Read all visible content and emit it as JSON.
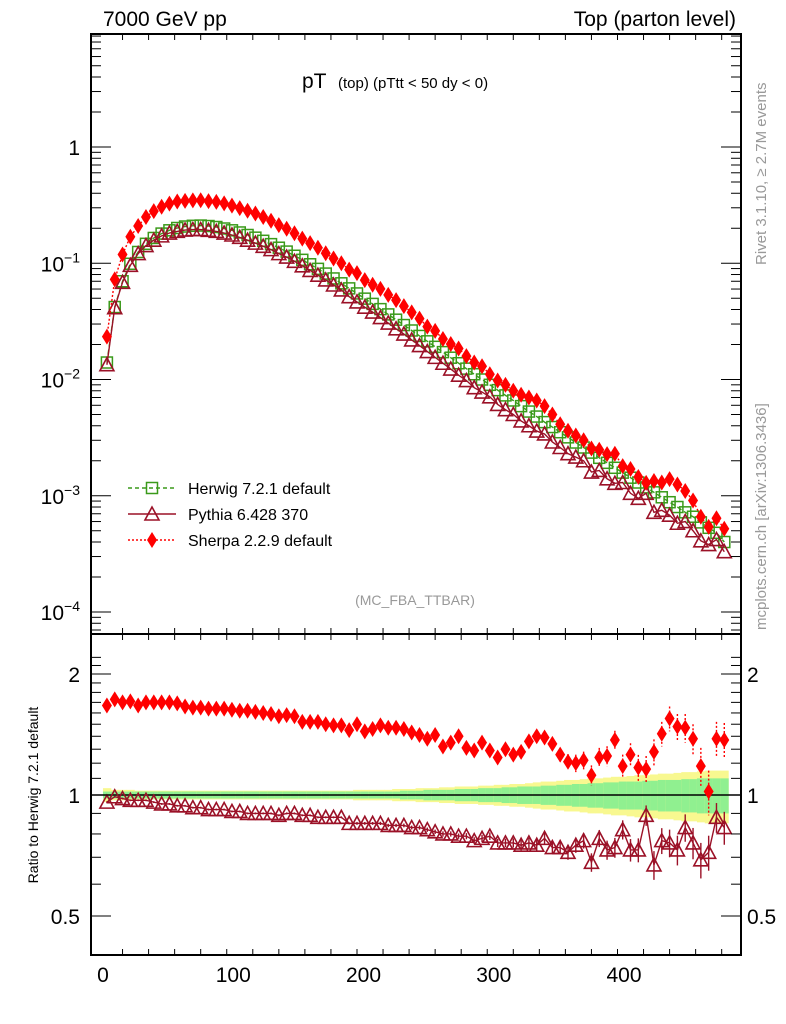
{
  "header": {
    "left": "7000 GeV pp",
    "right": "Top (parton level)"
  },
  "side_labels": {
    "rivet": "Rivet 3.1.10, ≥ 2.7M events",
    "mcplots": "mcplots.cern.ch [arXiv:1306.3436]"
  },
  "chart_data": [
    {
      "type": "scatter",
      "panel": "main",
      "title_main": "pT",
      "title_sub": "(top) (pTtt < 50 dy < 0)",
      "watermark": "(MC_FBA_TTBAR)",
      "yscale": "log",
      "ylim": [
        7e-05,
        10
      ],
      "xlim": [
        -9,
        491
      ],
      "ytick_labels": [
        "1",
        "10^-1",
        "10^-2",
        "10^-3",
        "10^-4"
      ],
      "ytick_values": [
        1,
        0.1,
        0.01,
        0.001,
        0.0001
      ],
      "legend_position": "lower-left",
      "x": [
        3,
        9,
        15,
        21,
        27,
        33,
        39,
        45,
        51,
        57,
        63,
        69,
        75,
        81,
        87,
        93,
        99,
        105,
        111,
        117,
        123,
        129,
        135,
        141,
        147,
        153,
        159,
        165,
        171,
        177,
        183,
        189,
        195,
        201,
        207,
        213,
        219,
        225,
        231,
        237,
        243,
        249,
        255,
        261,
        267,
        273,
        279,
        285,
        291,
        297,
        303,
        309,
        315,
        321,
        327,
        333,
        339,
        345,
        351,
        357,
        363,
        369,
        375,
        381,
        387,
        393,
        399,
        405,
        411,
        417,
        423,
        429,
        435,
        441,
        447,
        453,
        459,
        465,
        471,
        477
      ],
      "series": [
        {
          "name": "Herwig 7.2.1 default",
          "color": "#3a9a1a",
          "marker": "open-square",
          "line": "dashed",
          "values": [
            0.014,
            0.042,
            0.07,
            0.099,
            0.125,
            0.147,
            0.165,
            0.18,
            0.192,
            0.201,
            0.207,
            0.21,
            0.211,
            0.209,
            0.205,
            0.199,
            0.192,
            0.184,
            0.175,
            0.166,
            0.156,
            0.146,
            0.136,
            0.126,
            0.116,
            0.107,
            0.098,
            0.0895,
            0.0815,
            0.074,
            0.0672,
            0.0608,
            0.055,
            0.0496,
            0.0447,
            0.0403,
            0.0363,
            0.0327,
            0.0294,
            0.0264,
            0.0237,
            0.0213,
            0.0191,
            0.0172,
            0.0154,
            0.0138,
            0.0124,
            0.0111,
            0.01,
            0.009,
            0.0081,
            0.0073,
            0.0066,
            0.0059,
            0.0053,
            0.0048,
            0.0043,
            0.0039,
            0.00352,
            0.00318,
            0.00287,
            0.0026,
            0.00235,
            0.00212,
            0.00192,
            0.00174,
            0.00158,
            0.00143,
            0.0013,
            0.00118,
            0.00107,
            0.00097,
            0.00088,
            0.0008,
            0.00072,
            0.00066,
            0.00059,
            0.00053,
            0.00048,
            0.0004
          ]
        },
        {
          "name": "Pythia 6.428 370",
          "color": "#9b1127",
          "marker": "open-triangle",
          "line": "solid",
          "values": [
            0.0134,
            0.0415,
            0.0685,
            0.096,
            0.121,
            0.142,
            0.158,
            0.172,
            0.182,
            0.188,
            0.193,
            0.195,
            0.195,
            0.192,
            0.188,
            0.182,
            0.175,
            0.167,
            0.158,
            0.149,
            0.14,
            0.131,
            0.121,
            0.113,
            0.104,
            0.095,
            0.0868,
            0.079,
            0.0718,
            0.065,
            0.0589,
            0.0516,
            0.0465,
            0.0419,
            0.038,
            0.0341,
            0.0306,
            0.0273,
            0.0246,
            0.0219,
            0.0196,
            0.0174,
            0.0155,
            0.0138,
            0.0123,
            0.0109,
            0.0098,
            0.0085,
            0.0078,
            0.0071,
            0.0061,
            0.0055,
            0.005,
            0.0044,
            0.004,
            0.0036,
            0.0034,
            0.0029,
            0.0026,
            0.0023,
            0.00215,
            0.002,
            0.0016,
            0.00165,
            0.0014,
            0.00128,
            0.0013,
            0.00105,
            0.00095,
            0.00105,
            0.00072,
            0.00075,
            0.00068,
            0.00058,
            0.0006,
            0.0005,
            0.00041,
            0.00038,
            0.00042,
            0.00033
          ]
        },
        {
          "name": "Sherpa 2.2.9 default",
          "color": "#ff0000",
          "marker": "filled-diamond",
          "line": "dotted",
          "values": [
            0.0234,
            0.0726,
            0.119,
            0.169,
            0.209,
            0.25,
            0.281,
            0.306,
            0.326,
            0.34,
            0.344,
            0.347,
            0.348,
            0.342,
            0.337,
            0.327,
            0.313,
            0.298,
            0.283,
            0.268,
            0.25,
            0.232,
            0.213,
            0.198,
            0.181,
            0.163,
            0.149,
            0.136,
            0.122,
            0.11,
            0.0999,
            0.0882,
            0.0823,
            0.0715,
            0.0653,
            0.0602,
            0.0534,
            0.0482,
            0.0428,
            0.0378,
            0.0334,
            0.0285,
            0.0262,
            0.0223,
            0.0202,
            0.0185,
            0.0159,
            0.014,
            0.013,
            0.0111,
            0.0098,
            0.009,
            0.008,
            0.0074,
            0.007,
            0.0066,
            0.0059,
            0.005,
            0.00412,
            0.00362,
            0.0033,
            0.003,
            0.00255,
            0.00249,
            0.00228,
            0.0023,
            0.0018,
            0.0017,
            0.00145,
            0.00129,
            0.00134,
            0.0013,
            0.00139,
            0.00125,
            0.0011,
            0.00091,
            0.00066,
            0.00054,
            0.00064,
            0.00052
          ]
        }
      ]
    },
    {
      "type": "scatter",
      "panel": "ratio",
      "ylabel": "Ratio to Herwig 7.2.1 default",
      "xlabel": "",
      "xlim": [
        -9,
        491
      ],
      "ylim": [
        0.42,
        2.3
      ],
      "ytick_labels": [
        "2",
        "1",
        "0.5"
      ],
      "ytick_values": [
        2,
        1,
        0.5
      ],
      "xtick_labels": [
        "0",
        "100",
        "200",
        "300",
        "400"
      ],
      "xtick_values": [
        0,
        100,
        200,
        300,
        400
      ],
      "reference_line": 1,
      "band_colors": {
        "inner": "#90f090",
        "outer": "#f8f890"
      },
      "reference_band_inner_halfwidth": [
        0.02,
        0.02,
        0.02,
        0.02,
        0.02,
        0.02,
        0.02,
        0.02,
        0.02,
        0.02,
        0.02,
        0.02,
        0.02,
        0.02,
        0.02,
        0.02,
        0.02,
        0.02,
        0.02,
        0.02,
        0.02,
        0.02,
        0.02,
        0.02,
        0.02,
        0.02,
        0.02,
        0.02,
        0.02,
        0.02,
        0.02,
        0.02,
        0.02,
        0.02,
        0.02,
        0.02,
        0.02,
        0.02,
        0.025,
        0.025,
        0.025,
        0.03,
        0.03,
        0.03,
        0.03,
        0.035,
        0.035,
        0.035,
        0.04,
        0.04,
        0.04,
        0.045,
        0.045,
        0.05,
        0.05,
        0.05,
        0.055,
        0.055,
        0.06,
        0.06,
        0.065,
        0.065,
        0.07,
        0.07,
        0.075,
        0.075,
        0.08,
        0.08,
        0.08,
        0.085,
        0.085,
        0.09,
        0.09,
        0.09,
        0.095,
        0.095,
        0.1,
        0.1,
        0.1,
        0.1
      ],
      "reference_band_outer_halfwidth": [
        0.04,
        0.03,
        0.03,
        0.03,
        0.025,
        0.025,
        0.025,
        0.025,
        0.025,
        0.025,
        0.025,
        0.025,
        0.025,
        0.025,
        0.025,
        0.025,
        0.025,
        0.025,
        0.025,
        0.025,
        0.025,
        0.025,
        0.025,
        0.025,
        0.025,
        0.025,
        0.025,
        0.025,
        0.025,
        0.025,
        0.025,
        0.025,
        0.03,
        0.03,
        0.03,
        0.03,
        0.03,
        0.035,
        0.035,
        0.035,
        0.04,
        0.04,
        0.04,
        0.045,
        0.045,
        0.05,
        0.05,
        0.05,
        0.055,
        0.055,
        0.06,
        0.06,
        0.065,
        0.065,
        0.07,
        0.075,
        0.08,
        0.08,
        0.085,
        0.09,
        0.09,
        0.095,
        0.1,
        0.1,
        0.105,
        0.11,
        0.11,
        0.115,
        0.12,
        0.12,
        0.125,
        0.13,
        0.13,
        0.135,
        0.14,
        0.14,
        0.145,
        0.15,
        0.15,
        0.15
      ],
      "series": [
        {
          "name": "Pythia 6.428 370",
          "color": "#9b1127",
          "values": [
            0.96,
            0.99,
            0.98,
            0.97,
            0.97,
            0.97,
            0.96,
            0.95,
            0.95,
            0.94,
            0.94,
            0.93,
            0.93,
            0.92,
            0.92,
            0.92,
            0.91,
            0.91,
            0.9,
            0.9,
            0.9,
            0.9,
            0.89,
            0.9,
            0.9,
            0.89,
            0.89,
            0.88,
            0.88,
            0.88,
            0.88,
            0.85,
            0.85,
            0.85,
            0.85,
            0.85,
            0.84,
            0.84,
            0.84,
            0.83,
            0.83,
            0.82,
            0.81,
            0.8,
            0.8,
            0.79,
            0.79,
            0.77,
            0.78,
            0.79,
            0.76,
            0.76,
            0.76,
            0.75,
            0.76,
            0.75,
            0.78,
            0.74,
            0.74,
            0.72,
            0.75,
            0.77,
            0.68,
            0.78,
            0.73,
            0.74,
            0.82,
            0.73,
            0.73,
            0.89,
            0.67,
            0.77,
            0.76,
            0.73,
            0.83,
            0.76,
            0.69,
            0.72,
            0.88,
            0.83
          ],
          "errors": [
            0.005,
            0.005,
            0.005,
            0.005,
            0.005,
            0.005,
            0.005,
            0.005,
            0.005,
            0.005,
            0.005,
            0.005,
            0.005,
            0.005,
            0.005,
            0.005,
            0.005,
            0.005,
            0.005,
            0.005,
            0.005,
            0.005,
            0.005,
            0.005,
            0.005,
            0.005,
            0.005,
            0.005,
            0.005,
            0.005,
            0.005,
            0.005,
            0.007,
            0.007,
            0.007,
            0.008,
            0.008,
            0.008,
            0.009,
            0.009,
            0.01,
            0.01,
            0.01,
            0.012,
            0.012,
            0.012,
            0.014,
            0.015,
            0.016,
            0.017,
            0.018,
            0.019,
            0.02,
            0.022,
            0.022,
            0.024,
            0.025,
            0.026,
            0.028,
            0.03,
            0.032,
            0.034,
            0.036,
            0.038,
            0.04,
            0.042,
            0.045,
            0.047,
            0.05,
            0.052,
            0.055,
            0.057,
            0.06,
            0.062,
            0.065,
            0.068,
            0.07,
            0.072,
            0.075,
            0.078
          ]
        },
        {
          "name": "Sherpa 2.2.9 default",
          "color": "#ff0000",
          "values": [
            1.67,
            1.73,
            1.7,
            1.71,
            1.67,
            1.7,
            1.7,
            1.7,
            1.7,
            1.69,
            1.66,
            1.65,
            1.65,
            1.64,
            1.64,
            1.64,
            1.63,
            1.62,
            1.62,
            1.61,
            1.6,
            1.59,
            1.57,
            1.58,
            1.57,
            1.52,
            1.52,
            1.52,
            1.5,
            1.49,
            1.49,
            1.45,
            1.5,
            1.44,
            1.46,
            1.49,
            1.47,
            1.47,
            1.46,
            1.43,
            1.41,
            1.38,
            1.41,
            1.32,
            1.35,
            1.4,
            1.31,
            1.29,
            1.35,
            1.29,
            1.24,
            1.3,
            1.26,
            1.28,
            1.36,
            1.4,
            1.39,
            1.34,
            1.26,
            1.21,
            1.2,
            1.22,
            1.12,
            1.24,
            1.25,
            1.37,
            1.18,
            1.26,
            1.17,
            1.16,
            1.28,
            1.42,
            1.55,
            1.48,
            1.47,
            1.38,
            1.18,
            1.02,
            1.38,
            1.37
          ],
          "errors": [
            0.01,
            0.01,
            0.01,
            0.01,
            0.01,
            0.01,
            0.01,
            0.01,
            0.01,
            0.01,
            0.01,
            0.01,
            0.01,
            0.01,
            0.01,
            0.01,
            0.01,
            0.01,
            0.01,
            0.01,
            0.01,
            0.01,
            0.01,
            0.01,
            0.01,
            0.01,
            0.01,
            0.01,
            0.01,
            0.01,
            0.01,
            0.012,
            0.012,
            0.012,
            0.013,
            0.013,
            0.014,
            0.015,
            0.016,
            0.016,
            0.017,
            0.018,
            0.02,
            0.02,
            0.022,
            0.024,
            0.025,
            0.027,
            0.028,
            0.03,
            0.032,
            0.034,
            0.036,
            0.038,
            0.04,
            0.042,
            0.045,
            0.047,
            0.05,
            0.055,
            0.06,
            0.062,
            0.065,
            0.07,
            0.072,
            0.075,
            0.08,
            0.085,
            0.088,
            0.09,
            0.095,
            0.1,
            0.11,
            0.11,
            0.12,
            0.12,
            0.13,
            0.13,
            0.14,
            0.14
          ]
        }
      ]
    }
  ]
}
